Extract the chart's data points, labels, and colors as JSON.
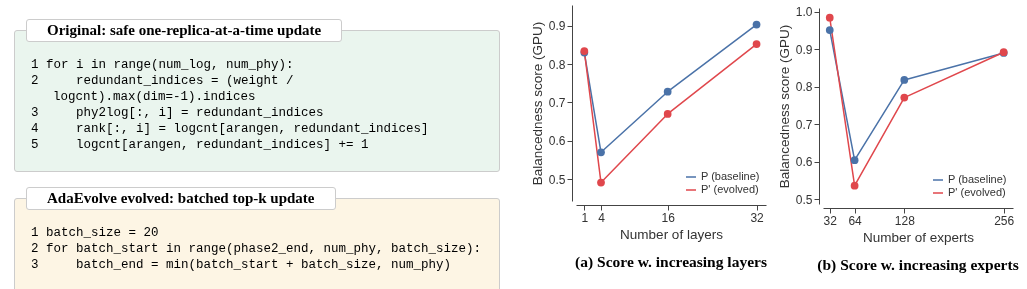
{
  "chart_data": [
    {
      "type": "other",
      "title": "Original: safe one-replica-at-a-time update",
      "annotations": [
        "1 for i in range(num_log, num_phy):",
        "2     redundant_indices = (weight / logcnt).max(dim=-1).indices",
        "3     phy2log[:, i] = redundant_indices",
        "4     rank[:, i] = logcnt[arangen, redundant_indices]",
        "5     logcnt[arangen, redundant_indices] += 1"
      ]
    },
    {
      "type": "other",
      "title": "AdaEvolve evolved: batched top-k update",
      "annotations": [
        "1 batch_size = 20",
        "2 for batch_start in range(phase2_end, num_phy, batch_size):",
        "3     batch_end = min(batch_start + batch_size, num_phy)"
      ]
    },
    {
      "type": "line",
      "title": "(a) Score w. increasing layers",
      "xlabel": "Number of layers",
      "ylabel": "Balancedness score (GPU)",
      "x": [
        1,
        4,
        16,
        32
      ],
      "xlim": [
        -0.5,
        33.7
      ],
      "xticks": [
        1,
        4,
        16,
        32
      ],
      "ylim": [
        0.443,
        0.954
      ],
      "yticks": [
        0.5,
        0.6,
        0.7,
        0.8,
        0.9
      ],
      "grid": false,
      "legend": "bottom right",
      "marker": "circle",
      "series": [
        {
          "name": "P (baseline)",
          "color": "#4a72a8",
          "values": [
            0.83,
            0.57,
            0.728,
            0.903
          ]
        },
        {
          "name": "P' (evolved)",
          "color": "#e0474c",
          "values": [
            0.834,
            0.491,
            0.67,
            0.852
          ]
        }
      ]
    },
    {
      "type": "line",
      "title": "(b) Score w. increasing experts",
      "xlabel": "Number of experts",
      "ylabel": "Balancedness score (GPU)",
      "x": [
        32,
        64,
        128,
        256
      ],
      "xlim": [
        23.3,
        268
      ],
      "xticks": [
        32,
        64,
        128,
        256
      ],
      "ylim": [
        0.487,
        1.01
      ],
      "yticks": [
        0.5,
        0.6,
        0.7,
        0.8,
        0.9,
        {
          "value": 1.0,
          "label": "1.0"
        }
      ],
      "grid": false,
      "legend": "bottom right",
      "marker": "circle",
      "series": [
        {
          "name": "P (baseline)",
          "color": "#4a72a8",
          "values": [
            0.951,
            0.604,
            0.818,
            0.89
          ]
        },
        {
          "name": "P' (evolved)",
          "color": "#e0474c",
          "values": [
            0.984,
            0.536,
            0.771,
            0.892
          ]
        }
      ]
    }
  ]
}
